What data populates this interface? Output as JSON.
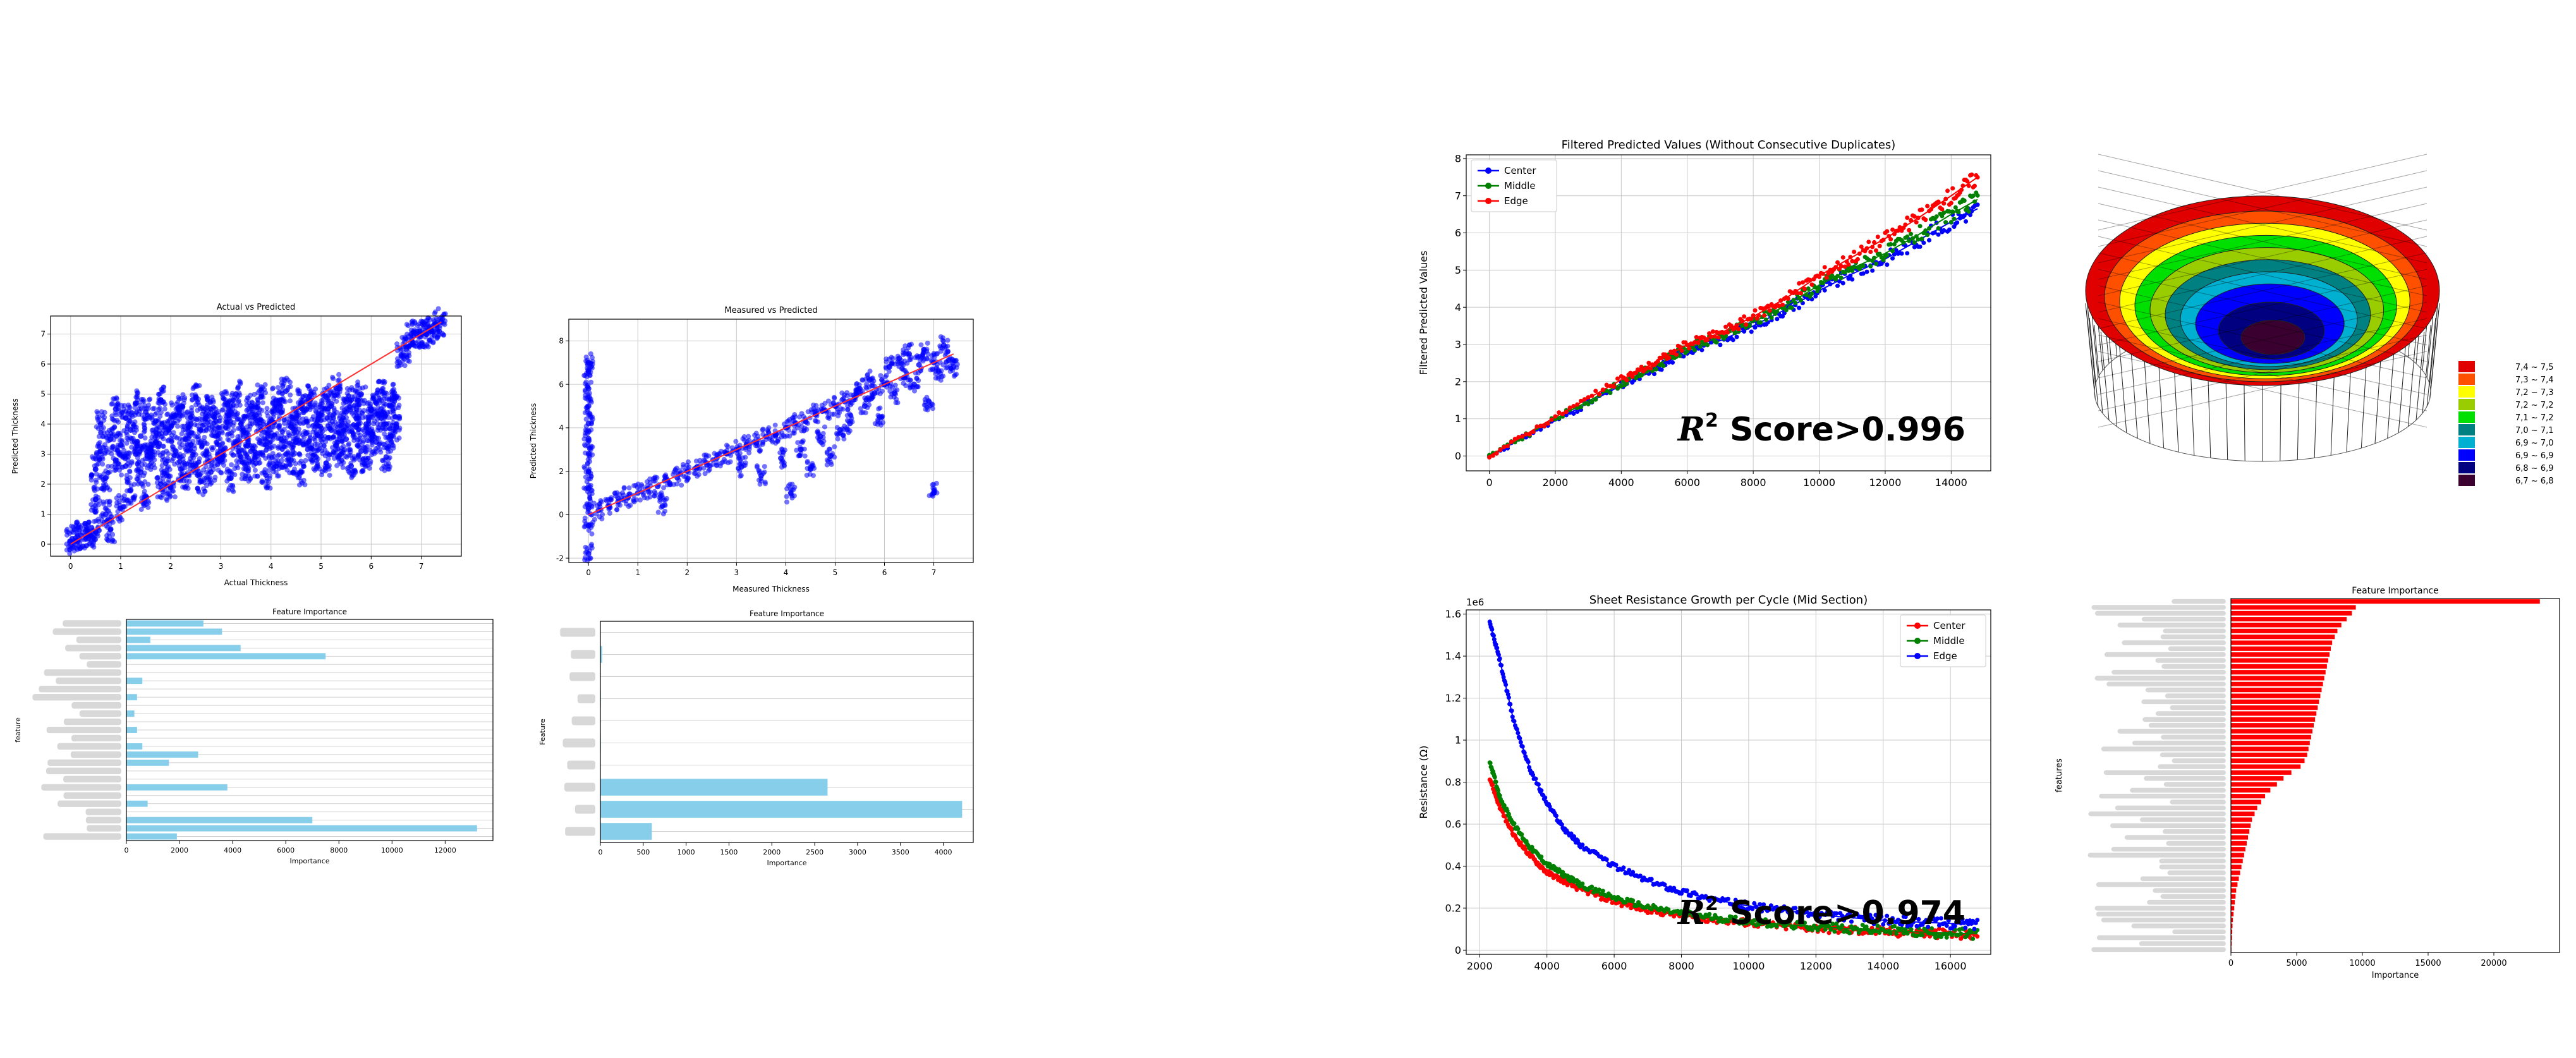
{
  "chart_data": [
    {
      "id": "actual_vs_predicted",
      "type": "scatter",
      "title": "Actual vs Predicted",
      "xlabel": "Actual Thickness",
      "ylabel": "Predicted Thickness",
      "xlim": [
        -0.4,
        7.8
      ],
      "ylim": [
        -0.4,
        7.6
      ],
      "xticks": [
        0,
        1,
        2,
        3,
        4,
        5,
        6,
        7
      ],
      "yticks": [
        0,
        1,
        2,
        3,
        4,
        5,
        6,
        7
      ],
      "grid": true,
      "points": [
        [
          0.0,
          0.1
        ],
        [
          0.1,
          0.2
        ],
        [
          0.2,
          0.3
        ],
        [
          0.3,
          0.3
        ],
        [
          0.4,
          0.3
        ],
        [
          0.5,
          0.4
        ],
        [
          0.5,
          1.5
        ],
        [
          0.5,
          2.5
        ],
        [
          0.6,
          3.1
        ],
        [
          0.6,
          4.0
        ],
        [
          0.7,
          1.0
        ],
        [
          0.7,
          2.2
        ],
        [
          0.8,
          3.5
        ],
        [
          0.8,
          0.5
        ],
        [
          0.9,
          4.5
        ],
        [
          0.9,
          2.8
        ],
        [
          1.0,
          3.3
        ],
        [
          1.0,
          1.2
        ],
        [
          1.1,
          2.6
        ],
        [
          1.1,
          4.2
        ],
        [
          1.2,
          3.8
        ],
        [
          1.2,
          1.8
        ],
        [
          1.3,
          4.7
        ],
        [
          1.3,
          3.0
        ],
        [
          1.4,
          2.4
        ],
        [
          1.4,
          3.6
        ],
        [
          1.5,
          4.4
        ],
        [
          1.5,
          1.6
        ],
        [
          1.6,
          3.2
        ],
        [
          1.6,
          2.9
        ],
        [
          1.7,
          4.1
        ],
        [
          1.7,
          3.4
        ],
        [
          1.8,
          2.0
        ],
        [
          1.8,
          4.8
        ],
        [
          1.9,
          3.7
        ],
        [
          1.9,
          2.7
        ],
        [
          2.0,
          3.9
        ],
        [
          2.0,
          1.9
        ],
        [
          2.1,
          4.3
        ],
        [
          2.1,
          3.1
        ],
        [
          2.2,
          2.5
        ],
        [
          2.2,
          4.6
        ],
        [
          2.3,
          3.5
        ],
        [
          2.3,
          2.3
        ],
        [
          2.4,
          4.0
        ],
        [
          2.4,
          3.3
        ],
        [
          2.5,
          2.6
        ],
        [
          2.5,
          4.9
        ],
        [
          2.6,
          3.8
        ],
        [
          2.6,
          2.1
        ],
        [
          2.7,
          4.2
        ],
        [
          2.7,
          3.0
        ],
        [
          2.8,
          4.5
        ],
        [
          2.8,
          2.4
        ],
        [
          2.9,
          3.6
        ],
        [
          2.9,
          4.1
        ],
        [
          3.0,
          3.2
        ],
        [
          3.0,
          2.8
        ],
        [
          3.1,
          4.7
        ],
        [
          3.1,
          3.9
        ],
        [
          3.2,
          2.2
        ],
        [
          3.2,
          4.4
        ],
        [
          3.3,
          3.4
        ],
        [
          3.3,
          5.0
        ],
        [
          3.4,
          2.9
        ],
        [
          3.4,
          4.0
        ],
        [
          3.5,
          3.7
        ],
        [
          3.5,
          2.5
        ],
        [
          3.6,
          4.6
        ],
        [
          3.6,
          3.1
        ],
        [
          3.7,
          4.3
        ],
        [
          3.7,
          2.7
        ],
        [
          3.8,
          3.8
        ],
        [
          3.8,
          4.9
        ],
        [
          3.9,
          3.3
        ],
        [
          3.9,
          2.3
        ],
        [
          4.0,
          4.1
        ],
        [
          4.0,
          3.6
        ],
        [
          4.1,
          4.8
        ],
        [
          4.1,
          2.6
        ],
        [
          4.2,
          3.5
        ],
        [
          4.2,
          4.4
        ],
        [
          4.3,
          3.0
        ],
        [
          4.3,
          5.1
        ],
        [
          4.4,
          3.9
        ],
        [
          4.4,
          2.8
        ],
        [
          4.5,
          4.2
        ],
        [
          4.5,
          3.4
        ],
        [
          4.6,
          4.7
        ],
        [
          4.6,
          2.4
        ],
        [
          4.7,
          3.7
        ],
        [
          4.7,
          4.5
        ],
        [
          4.8,
          3.2
        ],
        [
          4.8,
          5.0
        ],
        [
          4.9,
          4.0
        ],
        [
          4.9,
          2.9
        ],
        [
          5.0,
          4.3
        ],
        [
          5.0,
          3.6
        ],
        [
          5.1,
          4.9
        ],
        [
          5.1,
          2.7
        ],
        [
          5.2,
          3.8
        ],
        [
          5.2,
          4.6
        ],
        [
          5.3,
          3.3
        ],
        [
          5.3,
          5.2
        ],
        [
          5.4,
          4.1
        ],
        [
          5.4,
          3.0
        ],
        [
          5.5,
          4.4
        ],
        [
          5.5,
          3.5
        ],
        [
          5.6,
          4.8
        ],
        [
          5.6,
          2.6
        ],
        [
          5.7,
          3.9
        ],
        [
          5.7,
          4.2
        ],
        [
          5.8,
          3.1
        ],
        [
          5.8,
          5.0
        ],
        [
          5.9,
          4.0
        ],
        [
          5.9,
          2.8
        ],
        [
          6.0,
          4.5
        ],
        [
          6.0,
          3.7
        ],
        [
          6.1,
          4.7
        ],
        [
          6.1,
          3.4
        ],
        [
          6.2,
          5.1
        ],
        [
          6.2,
          4.2
        ],
        [
          6.3,
          4.0
        ],
        [
          6.3,
          2.9
        ],
        [
          6.4,
          4.6
        ],
        [
          6.4,
          3.6
        ],
        [
          6.5,
          3.9
        ],
        [
          6.5,
          4.9
        ],
        [
          6.6,
          6.3
        ],
        [
          6.7,
          6.5
        ],
        [
          6.8,
          7.0
        ],
        [
          6.9,
          7.0
        ],
        [
          7.0,
          7.0
        ],
        [
          7.1,
          7.0
        ],
        [
          7.2,
          7.1
        ],
        [
          7.3,
          7.3
        ],
        [
          7.4,
          7.4
        ]
      ],
      "fit_line": [
        [
          0.0,
          0.0
        ],
        [
          7.4,
          7.4
        ]
      ]
    },
    {
      "id": "measured_vs_predicted",
      "type": "scatter",
      "title": "Measured vs Predicted",
      "xlabel": "Measured Thickness",
      "ylabel": "Predicted Thickness",
      "xlim": [
        -0.4,
        7.8
      ],
      "ylim": [
        -2.2,
        9.0
      ],
      "xticks": [
        0,
        1,
        2,
        3,
        4,
        5,
        6,
        7
      ],
      "yticks": [
        -2,
        0,
        2,
        4,
        6,
        8
      ],
      "grid": true,
      "points": [
        [
          0.0,
          -1.8
        ],
        [
          0.0,
          -0.5
        ],
        [
          0.0,
          0.3
        ],
        [
          0.0,
          1.2
        ],
        [
          0.0,
          2.0
        ],
        [
          0.0,
          2.8
        ],
        [
          0.0,
          3.5
        ],
        [
          0.0,
          4.2
        ],
        [
          0.0,
          5.0
        ],
        [
          0.0,
          5.8
        ],
        [
          0.0,
          6.6
        ],
        [
          0.0,
          7.0
        ],
        [
          0.2,
          0.2
        ],
        [
          0.4,
          0.4
        ],
        [
          0.6,
          0.6
        ],
        [
          0.8,
          0.8
        ],
        [
          1.0,
          1.0
        ],
        [
          1.2,
          1.2
        ],
        [
          1.4,
          1.3
        ],
        [
          1.5,
          0.4
        ],
        [
          1.6,
          1.6
        ],
        [
          1.8,
          1.7
        ],
        [
          2.0,
          2.0
        ],
        [
          2.2,
          2.2
        ],
        [
          2.4,
          2.3
        ],
        [
          2.6,
          2.6
        ],
        [
          2.8,
          2.8
        ],
        [
          3.0,
          3.0
        ],
        [
          3.1,
          2.2
        ],
        [
          3.2,
          3.2
        ],
        [
          3.4,
          3.3
        ],
        [
          3.5,
          1.8
        ],
        [
          3.6,
          3.6
        ],
        [
          3.8,
          3.7
        ],
        [
          3.9,
          2.6
        ],
        [
          4.0,
          4.0
        ],
        [
          4.1,
          1.0
        ],
        [
          4.2,
          4.2
        ],
        [
          4.3,
          3.0
        ],
        [
          4.4,
          4.3
        ],
        [
          4.5,
          2.1
        ],
        [
          4.6,
          4.6
        ],
        [
          4.7,
          3.6
        ],
        [
          4.8,
          4.8
        ],
        [
          4.9,
          2.7
        ],
        [
          5.0,
          5.0
        ],
        [
          5.1,
          3.9
        ],
        [
          5.2,
          5.2
        ],
        [
          5.3,
          4.2
        ],
        [
          5.4,
          5.4
        ],
        [
          5.5,
          5.8
        ],
        [
          5.6,
          5.0
        ],
        [
          5.7,
          6.2
        ],
        [
          5.8,
          5.6
        ],
        [
          5.9,
          4.5
        ],
        [
          6.0,
          6.0
        ],
        [
          6.1,
          6.8
        ],
        [
          6.2,
          5.6
        ],
        [
          6.3,
          7.2
        ],
        [
          6.4,
          6.3
        ],
        [
          6.5,
          7.4
        ],
        [
          6.6,
          6.0
        ],
        [
          6.7,
          6.9
        ],
        [
          6.8,
          7.6
        ],
        [
          6.9,
          5.2
        ],
        [
          7.0,
          7.0
        ],
        [
          7.0,
          1.0
        ],
        [
          7.1,
          6.6
        ],
        [
          7.2,
          7.8
        ],
        [
          7.3,
          7.1
        ],
        [
          7.4,
          6.8
        ]
      ],
      "fit_line": [
        [
          0.0,
          0.0
        ],
        [
          7.4,
          7.4
        ]
      ]
    },
    {
      "id": "feature_importance_1",
      "type": "bar",
      "orientation": "horizontal",
      "title": "Feature Importance",
      "xlabel": "Importance",
      "ylabel": "feature",
      "xlim": [
        0,
        13800
      ],
      "xticks": [
        0,
        2000,
        4000,
        6000,
        8000,
        10000,
        12000
      ],
      "values": [
        2900,
        3600,
        900,
        4300,
        7500,
        0,
        0,
        600,
        0,
        400,
        0,
        300,
        0,
        400,
        0,
        600,
        2700,
        1600,
        0,
        0,
        3800,
        0,
        800,
        0,
        7000,
        13200,
        1900
      ],
      "grid": true
    },
    {
      "id": "feature_importance_2",
      "type": "bar",
      "orientation": "horizontal",
      "title": "Feature Importance",
      "xlabel": "Importance",
      "ylabel": "Feature",
      "xlim": [
        0,
        4350
      ],
      "xticks": [
        0,
        500,
        1000,
        1500,
        2000,
        2500,
        3000,
        3500,
        4000
      ],
      "values": [
        0,
        20,
        0,
        5,
        0,
        5,
        0,
        2650,
        4220,
        600
      ],
      "grid": true
    },
    {
      "id": "filtered_predicted_values",
      "type": "line",
      "title": "Filtered Predicted Values (Without Consecutive Duplicates)",
      "xlabel": "",
      "ylabel": "Filtered Predicted Values",
      "xlim": [
        -700,
        15200
      ],
      "ylim": [
        -0.4,
        8.1
      ],
      "xticks": [
        0,
        2000,
        4000,
        6000,
        8000,
        10000,
        12000,
        14000
      ],
      "yticks": [
        0,
        1,
        2,
        3,
        4,
        5,
        6,
        7,
        8
      ],
      "grid": true,
      "legend_position": "top-left",
      "annotation_prefix": "R",
      "annotation_sup": "2",
      "annotation_text": " Score>0.996",
      "x": [
        0,
        2000,
        4000,
        5000,
        6000,
        7000,
        8000,
        9000,
        10000,
        11000,
        12000,
        13000,
        14000,
        14800
      ],
      "series": [
        {
          "name": "Center",
          "color": "#0000ff",
          "values": [
            0.0,
            0.95,
            1.9,
            2.3,
            2.85,
            3.1,
            3.5,
            3.95,
            4.45,
            4.9,
            5.3,
            5.8,
            6.3,
            6.65
          ]
        },
        {
          "name": "Middle",
          "color": "#008000",
          "values": [
            0.0,
            1.0,
            1.95,
            2.4,
            2.9,
            3.2,
            3.6,
            4.05,
            4.6,
            5.05,
            5.45,
            5.95,
            6.5,
            6.9
          ]
        },
        {
          "name": "Edge",
          "color": "#ff0000",
          "values": [
            0.0,
            1.05,
            2.05,
            2.5,
            3.0,
            3.3,
            3.75,
            4.25,
            4.85,
            5.35,
            5.85,
            6.4,
            7.0,
            7.5
          ]
        }
      ]
    },
    {
      "id": "surface_3d",
      "type": "heatmap",
      "legend_labels": [
        "7,4 ~ 7,5",
        "7,3 ~ 7,4",
        "7,2 ~ 7,3",
        "7,2 ~ 7,2",
        "7,1 ~ 7,2",
        "7,0 ~ 7,1",
        "6,9 ~ 7,0",
        "6,9 ~ 6,9",
        "6,8 ~ 6,9",
        "6,7 ~ 6,8"
      ],
      "legend_colors": [
        "#e00000",
        "#ff5000",
        "#ffff00",
        "#9acd00",
        "#00e000",
        "#008080",
        "#00b0d0",
        "#0000ff",
        "#000080",
        "#3a0030"
      ]
    },
    {
      "id": "sheet_resistance",
      "type": "line",
      "title": "Sheet Resistance Growth per Cycle (Mid Section)",
      "xlabel": "",
      "ylabel": "Resistance (Ω)",
      "y_multiplier": "1e6",
      "xlim": [
        1600,
        17200
      ],
      "ylim": [
        -0.02,
        1.62
      ],
      "xticks": [
        2000,
        4000,
        6000,
        8000,
        10000,
        12000,
        14000,
        16000
      ],
      "yticks": [
        0.0,
        0.2,
        0.4,
        0.6,
        0.8,
        1.0,
        1.2,
        1.4,
        1.6
      ],
      "grid": true,
      "legend_position": "top-right",
      "annotation_prefix": "R",
      "annotation_sup": "2",
      "annotation_text": " Score>0.974",
      "x": [
        2300,
        2600,
        3000,
        3500,
        4000,
        4500,
        5000,
        6000,
        7000,
        8000,
        9000,
        10000,
        11000,
        12000,
        13000,
        14000,
        15000,
        16000,
        16800
      ],
      "series": [
        {
          "name": "Center",
          "color": "#ff0000",
          "values": [
            0.82,
            0.68,
            0.55,
            0.45,
            0.37,
            0.33,
            0.29,
            0.23,
            0.19,
            0.165,
            0.145,
            0.13,
            0.115,
            0.105,
            0.095,
            0.088,
            0.082,
            0.076,
            0.073
          ]
        },
        {
          "name": "Middle",
          "color": "#008000",
          "values": [
            0.9,
            0.73,
            0.6,
            0.49,
            0.41,
            0.36,
            0.31,
            0.25,
            0.205,
            0.175,
            0.155,
            0.138,
            0.123,
            0.112,
            0.102,
            0.094,
            0.087,
            0.081,
            0.078
          ]
        },
        {
          "name": "Edge",
          "color": "#0000ff",
          "values": [
            1.56,
            1.38,
            1.1,
            0.86,
            0.7,
            0.58,
            0.5,
            0.4,
            0.33,
            0.28,
            0.24,
            0.21,
            0.19,
            0.17,
            0.155,
            0.143,
            0.134,
            0.127,
            0.124
          ]
        }
      ]
    },
    {
      "id": "feature_importance_3",
      "type": "bar",
      "orientation": "horizontal",
      "title": "Feature Importance",
      "xlabel": "Importance",
      "ylabel": "features",
      "xlim": [
        0,
        25000
      ],
      "xticks": [
        0,
        5000,
        10000,
        15000,
        20000
      ],
      "values": [
        23500,
        9500,
        9200,
        8800,
        8400,
        8100,
        7900,
        7700,
        7600,
        7500,
        7400,
        7300,
        7200,
        7100,
        7000,
        6900,
        6800,
        6700,
        6600,
        6500,
        6400,
        6300,
        6200,
        6100,
        6000,
        5900,
        5800,
        5600,
        5300,
        4600,
        4000,
        3500,
        3000,
        2600,
        2300,
        2000,
        1800,
        1600,
        1500,
        1400,
        1300,
        1200,
        1100,
        1000,
        900,
        800,
        700,
        600,
        500,
        400,
        350,
        300,
        250,
        200,
        150,
        120,
        100,
        80,
        60,
        40
      ]
    }
  ]
}
